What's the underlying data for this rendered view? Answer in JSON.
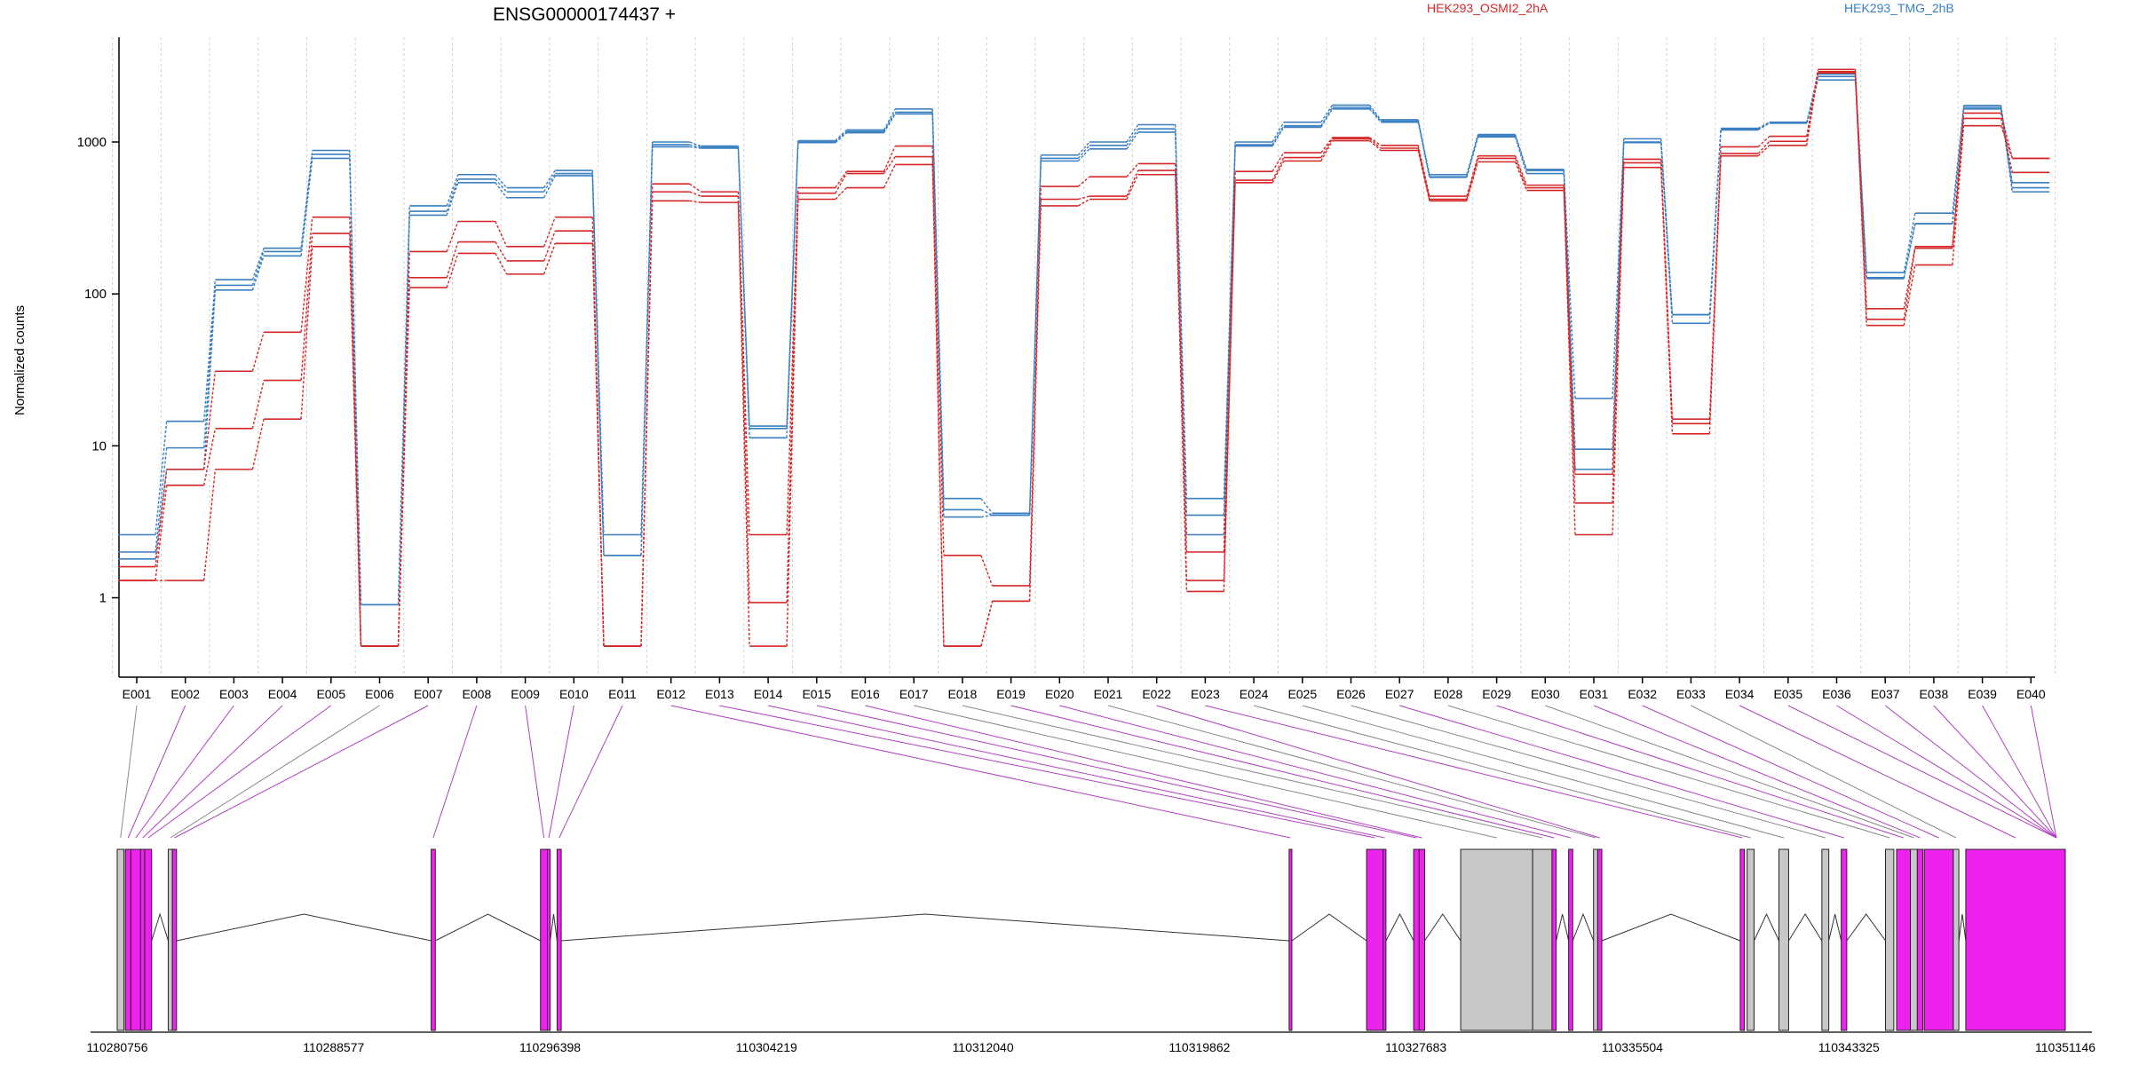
{
  "chart_data": {
    "type": "line",
    "title": "ENSG00000174437 +",
    "ylabel": "Normalized counts",
    "yscale": "log",
    "ylim": [
      0.4,
      4000
    ],
    "yticks": [
      1,
      10,
      100,
      1000
    ],
    "ytick_labels": [
      "1",
      "10",
      "100",
      "1000"
    ],
    "legend": [
      "HEK293_OSMI2_2hA",
      "HEK293_TMG_2hB"
    ],
    "legend_placement": "top",
    "colors": {
      "HEK293_OSMI2_2hA": "#d62728",
      "HEK293_TMG_2hB": "#3a7fc0",
      "exon_used": "#ee22ee",
      "exon_other": "#c8c8c8",
      "connector_used": "#b040c0",
      "connector_other": "#888888"
    },
    "grid": "vertical dotted",
    "categories": [
      "E001",
      "E002",
      "E003",
      "E004",
      "E005",
      "E006",
      "E007",
      "E008",
      "E009",
      "E010",
      "E011",
      "E012",
      "E013",
      "E014",
      "E015",
      "E016",
      "E017",
      "E018",
      "E019",
      "E020",
      "E021",
      "E022",
      "E023",
      "E024",
      "E025",
      "E026",
      "E027",
      "E028",
      "E029",
      "E030",
      "E031",
      "E032",
      "E033",
      "E034",
      "E035",
      "E036",
      "E037",
      "E038",
      "E039",
      "E040"
    ],
    "series": [
      {
        "group": "HEK293_TMG_2hB",
        "values": [
          2.6,
          14.5,
          124,
          200,
          880,
          0.9,
          380,
          610,
          500,
          650,
          2.6,
          1000,
          940,
          13.5,
          1020,
          1200,
          1650,
          4.5,
          3.6,
          820,
          1000,
          1300,
          4.5,
          1000,
          1350,
          1750,
          1400,
          610,
          1120,
          660,
          20.5,
          1050,
          73,
          1230,
          1350,
          2800,
          138,
          340,
          1740,
          540
        ]
      },
      {
        "group": "HEK293_TMG_2hB",
        "values": [
          2.0,
          9.7,
          114,
          190,
          830,
          0.9,
          350,
          570,
          470,
          620,
          1.9,
          960,
          920,
          13.0,
          1000,
          1170,
          1570,
          3.8,
          3.5,
          780,
          950,
          1220,
          3.5,
          960,
          1280,
          1690,
          1370,
          590,
          1100,
          650,
          9.5,
          1000,
          73,
          1210,
          1340,
          2700,
          128,
          290,
          1690,
          500
        ]
      },
      {
        "group": "HEK293_TMG_2hB",
        "values": [
          1.8,
          7.0,
          106,
          178,
          780,
          0.48,
          330,
          540,
          430,
          600,
          1.9,
          930,
          910,
          11.3,
          990,
          1150,
          1530,
          3.4,
          3.5,
          750,
          900,
          1160,
          2.6,
          940,
          1250,
          1650,
          1350,
          585,
          1080,
          620,
          7.0,
          990,
          64,
          1200,
          1330,
          2560,
          126,
          290,
          1650,
          470
        ]
      },
      {
        "group": "HEK293_OSMI2_2hA",
        "values": [
          1.6,
          7.0,
          31,
          56,
          320,
          0.48,
          190,
          300,
          205,
          320,
          0.48,
          530,
          470,
          2.6,
          500,
          640,
          940,
          1.9,
          1.2,
          510,
          590,
          720,
          2.0,
          640,
          850,
          1070,
          950,
          440,
          810,
          520,
          6.5,
          770,
          15,
          930,
          1090,
          3000,
          80,
          205,
          1550,
          780
        ]
      },
      {
        "group": "HEK293_OSMI2_2hA",
        "values": [
          1.3,
          5.5,
          13,
          27,
          250,
          0.48,
          128,
          220,
          165,
          260,
          0.48,
          470,
          440,
          0.93,
          460,
          620,
          800,
          0.48,
          0.95,
          420,
          440,
          650,
          1.3,
          560,
          790,
          1050,
          910,
          420,
          780,
          500,
          4.2,
          730,
          14,
          840,
          1010,
          2850,
          68,
          200,
          1430,
          630
        ]
      },
      {
        "group": "HEK293_OSMI2_2hA",
        "values": [
          1.3,
          1.3,
          7.0,
          15,
          205,
          0.48,
          110,
          185,
          135,
          215,
          0.48,
          410,
          400,
          0.48,
          420,
          500,
          710,
          0.48,
          0.95,
          380,
          420,
          610,
          1.1,
          540,
          750,
          1020,
          880,
          410,
          740,
          480,
          2.6,
          680,
          12,
          810,
          950,
          2900,
          62,
          155,
          1280,
          780
        ]
      }
    ],
    "gene_model": {
      "coordinate_ticks": [
        "110280756",
        "110288577",
        "110296398",
        "110304219",
        "110312040",
        "110319862",
        "110327683",
        "110335504",
        "110343325",
        "110351146"
      ],
      "exons": [
        {
          "start": 110280756,
          "end": 110281000,
          "used": false
        },
        {
          "start": 110281050,
          "end": 110281250,
          "used": true
        },
        {
          "start": 110281250,
          "end": 110281600,
          "used": true
        },
        {
          "start": 110281600,
          "end": 110281750,
          "used": true
        },
        {
          "start": 110281750,
          "end": 110282000,
          "used": true
        },
        {
          "start": 110282600,
          "end": 110282750,
          "used": false
        },
        {
          "start": 110282750,
          "end": 110282900,
          "used": true
        },
        {
          "start": 110292100,
          "end": 110292250,
          "used": true
        },
        {
          "start": 110296050,
          "end": 110296300,
          "used": true
        },
        {
          "start": 110296300,
          "end": 110296400,
          "used": true
        },
        {
          "start": 110296650,
          "end": 110296800,
          "used": true
        },
        {
          "start": 110323100,
          "end": 110323200,
          "used": true
        },
        {
          "start": 110325900,
          "end": 110326500,
          "used": true
        },
        {
          "start": 110326500,
          "end": 110326600,
          "used": true
        },
        {
          "start": 110327600,
          "end": 110327800,
          "used": true
        },
        {
          "start": 110327800,
          "end": 110328000,
          "used": true
        },
        {
          "start": 110329300,
          "end": 110331900,
          "used": false
        },
        {
          "start": 110331900,
          "end": 110332600,
          "used": false
        },
        {
          "start": 110332600,
          "end": 110332750,
          "used": true
        },
        {
          "start": 110333200,
          "end": 110333350,
          "used": true
        },
        {
          "start": 110334100,
          "end": 110334250,
          "used": false
        },
        {
          "start": 110334250,
          "end": 110334400,
          "used": true
        },
        {
          "start": 110339400,
          "end": 110339550,
          "used": true
        },
        {
          "start": 110339650,
          "end": 110339900,
          "used": false
        },
        {
          "start": 110340800,
          "end": 110341150,
          "used": false
        },
        {
          "start": 110342350,
          "end": 110342600,
          "used": false
        },
        {
          "start": 110343050,
          "end": 110343250,
          "used": true
        },
        {
          "start": 110344650,
          "end": 110344950,
          "used": false
        },
        {
          "start": 110345050,
          "end": 110345550,
          "used": true
        },
        {
          "start": 110345550,
          "end": 110345800,
          "used": false
        },
        {
          "start": 110345800,
          "end": 110346000,
          "used": true
        },
        {
          "start": 110346050,
          "end": 110347100,
          "used": true
        },
        {
          "start": 110347100,
          "end": 110347300,
          "used": false
        },
        {
          "start": 110347550,
          "end": 110351146,
          "used": true
        }
      ]
    }
  }
}
